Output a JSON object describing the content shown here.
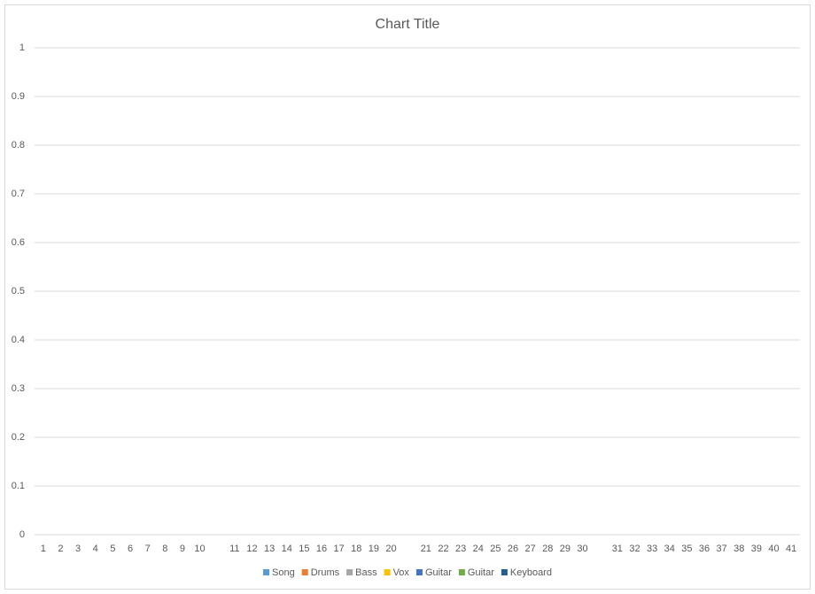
{
  "chart_data": {
    "type": "bar",
    "title": "Chart Title",
    "categories": [
      "1",
      "2",
      "3",
      "4",
      "5",
      "6",
      "7",
      "8",
      "9",
      "10",
      null,
      "11",
      "12",
      "13",
      "14",
      "15",
      "16",
      "17",
      "18",
      "19",
      "20",
      null,
      "21",
      "22",
      "23",
      "24",
      "25",
      "26",
      "27",
      "28",
      "29",
      "30",
      null,
      "31",
      "32",
      "33",
      "34",
      "35",
      "36",
      "37",
      "38",
      "39",
      "40",
      "41"
    ],
    "series": [
      {
        "name": "Song",
        "color": "#5b9bd5"
      },
      {
        "name": "Drums",
        "color": "#ed7d31"
      },
      {
        "name": "Bass",
        "color": "#a5a5a5"
      },
      {
        "name": "Vox",
        "color": "#ffc000"
      },
      {
        "name": "Guitar",
        "color": "#4472c4"
      },
      {
        "name": "Guitar",
        "color": "#70ad47"
      },
      {
        "name": "Keyboard",
        "color": "#255e91"
      }
    ],
    "ylim": [
      0,
      1
    ],
    "yticks": [
      0,
      0.1,
      0.2,
      0.3,
      0.4,
      0.5,
      0.6,
      0.7,
      0.8,
      0.9,
      1
    ],
    "grid": true,
    "legend": "bottom"
  }
}
